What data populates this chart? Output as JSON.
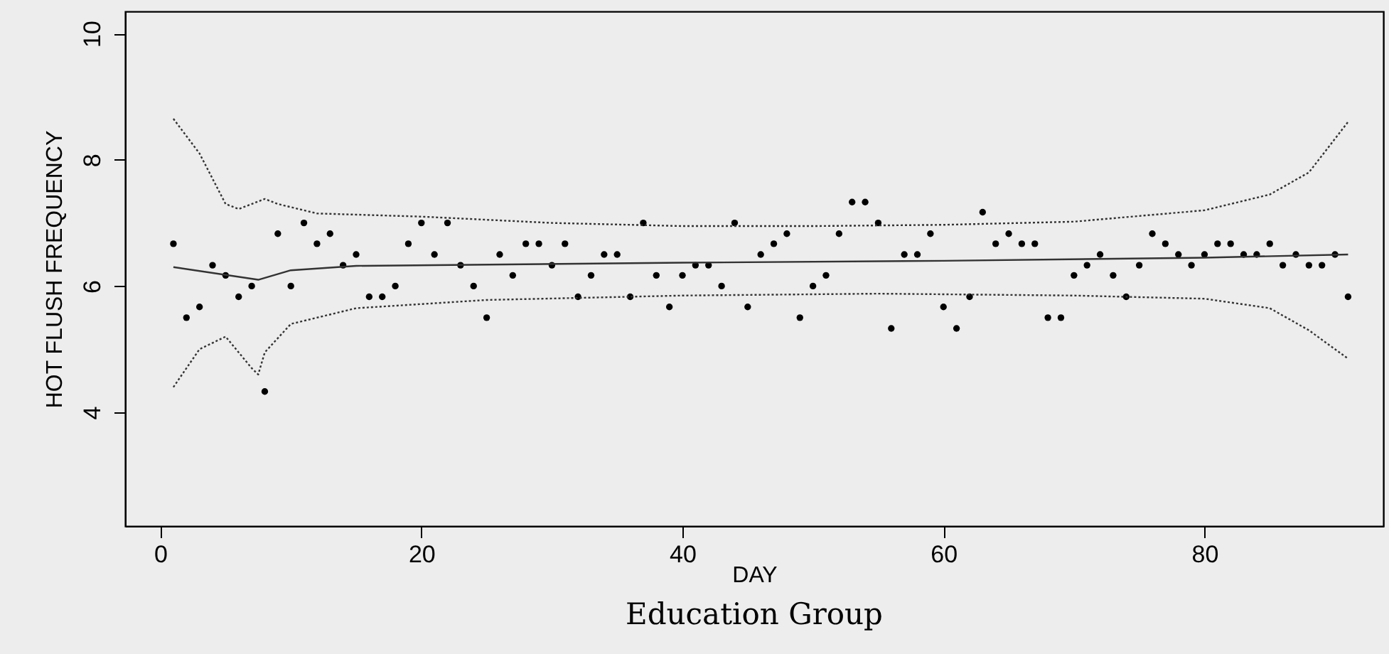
{
  "chart_data": {
    "type": "scatter",
    "title": "Education Group",
    "xlabel": "DAY",
    "ylabel": "HOT FLUSH FREQUENCY",
    "xlim": [
      -2.7,
      93.7
    ],
    "ylim": [
      2.2,
      10.35
    ],
    "xticks": [
      0,
      20,
      40,
      60,
      80
    ],
    "yticks": [
      4,
      6,
      8,
      10
    ],
    "grid": false,
    "series": [
      {
        "marker": "circle",
        "color": "#000000",
        "x": [
          1,
          2,
          3,
          4,
          5,
          6,
          7,
          8,
          9,
          10,
          11,
          12,
          13,
          14,
          15,
          16,
          17,
          18,
          19,
          20,
          21,
          22,
          23,
          24,
          25,
          26,
          27,
          28,
          29,
          30,
          31,
          32,
          33,
          34,
          35,
          36,
          37,
          38,
          39,
          40,
          41,
          42,
          43,
          44,
          45,
          46,
          47,
          48,
          49,
          50,
          51,
          52,
          53,
          54,
          55,
          56,
          57,
          58,
          59,
          60,
          61,
          62,
          63,
          64,
          65,
          66,
          67,
          68,
          69,
          70,
          71,
          72,
          73,
          74,
          75,
          76,
          77,
          78,
          79,
          80,
          81,
          82,
          83,
          84,
          85,
          86,
          87,
          88,
          89,
          90,
          91
        ],
        "values": [
          6.67,
          5.5,
          5.67,
          6.33,
          6.17,
          5.83,
          6.0,
          4.33,
          6.83,
          6.0,
          7.0,
          6.67,
          6.83,
          6.33,
          6.5,
          5.83,
          5.83,
          6.0,
          6.67,
          7.0,
          6.5,
          7.0,
          6.33,
          6.0,
          5.5,
          6.5,
          6.17,
          6.67,
          6.67,
          6.33,
          6.67,
          5.83,
          6.17,
          6.5,
          6.5,
          5.83,
          7.0,
          6.17,
          5.67,
          6.17,
          6.33,
          6.33,
          6.0,
          7.0,
          5.67,
          6.5,
          6.67,
          6.83,
          5.5,
          6.0,
          6.17,
          6.83,
          7.33,
          7.33,
          7.0,
          5.33,
          6.5,
          6.5,
          6.83,
          5.67,
          5.33,
          5.83,
          7.17,
          6.67,
          6.83,
          6.67,
          6.67,
          5.5,
          5.5,
          6.17,
          6.33,
          6.5,
          6.17,
          5.83,
          6.33,
          6.83,
          6.67,
          6.5,
          6.33,
          6.5,
          6.67,
          6.67,
          6.5,
          6.5,
          6.67,
          6.33,
          6.5,
          6.33,
          6.33,
          6.5,
          5.83
        ]
      },
      {
        "type": "line",
        "line_style": "solid",
        "color": "#333333",
        "x": [
          1,
          7.5,
          10,
          15,
          40,
          60,
          80,
          91
        ],
        "values": [
          6.3,
          6.1,
          6.25,
          6.32,
          6.37,
          6.4,
          6.45,
          6.5
        ]
      },
      {
        "type": "line",
        "line_style": "dotted",
        "color": "#333333",
        "x": [
          1,
          3,
          5,
          6,
          8,
          9,
          12,
          20,
          30,
          40,
          50,
          60,
          70,
          80,
          85,
          88,
          91
        ],
        "values": [
          8.65,
          8.1,
          7.3,
          7.22,
          7.38,
          7.3,
          7.15,
          7.1,
          7.0,
          6.95,
          6.95,
          6.97,
          7.02,
          7.2,
          7.45,
          7.8,
          8.6
        ]
      },
      {
        "type": "line",
        "line_style": "dotted",
        "color": "#333333",
        "x": [
          1,
          3,
          5,
          7,
          7.5,
          8,
          10,
          15,
          25,
          40,
          55,
          70,
          80,
          85,
          88,
          91
        ],
        "values": [
          4.4,
          5.0,
          5.2,
          4.7,
          4.6,
          4.95,
          5.4,
          5.65,
          5.78,
          5.85,
          5.88,
          5.85,
          5.8,
          5.65,
          5.3,
          4.85
        ]
      }
    ]
  }
}
